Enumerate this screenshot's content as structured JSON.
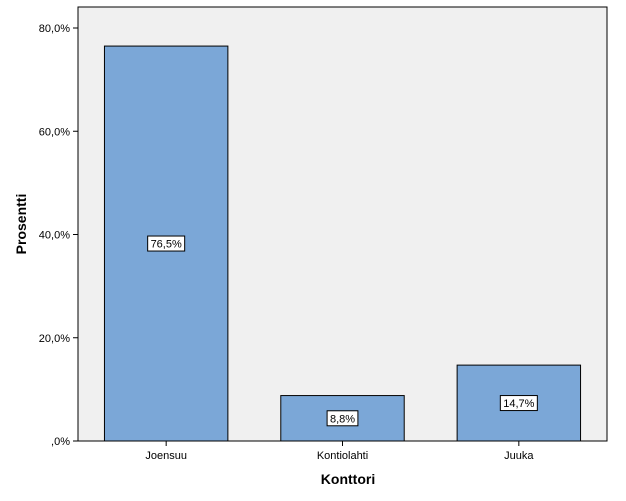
{
  "chart_data": {
    "type": "bar",
    "categories": [
      "Joensuu",
      "Kontiolahti",
      "Juuka"
    ],
    "values": [
      76.5,
      8.8,
      14.7
    ],
    "data_labels": [
      "76,5%",
      "8,8%",
      "14,7%"
    ],
    "xlabel": "Konttori",
    "ylabel": "Prosentti",
    "ylim": [
      0,
      80
    ],
    "yticks": [
      0,
      20,
      40,
      60,
      80
    ],
    "ytick_labels": [
      ",0%",
      "20,0%",
      "40,0%",
      "60,0%",
      "80,0%"
    ],
    "grid": false,
    "bar_color": "#7BA7D7",
    "plot_background": "#F0F0F0"
  }
}
